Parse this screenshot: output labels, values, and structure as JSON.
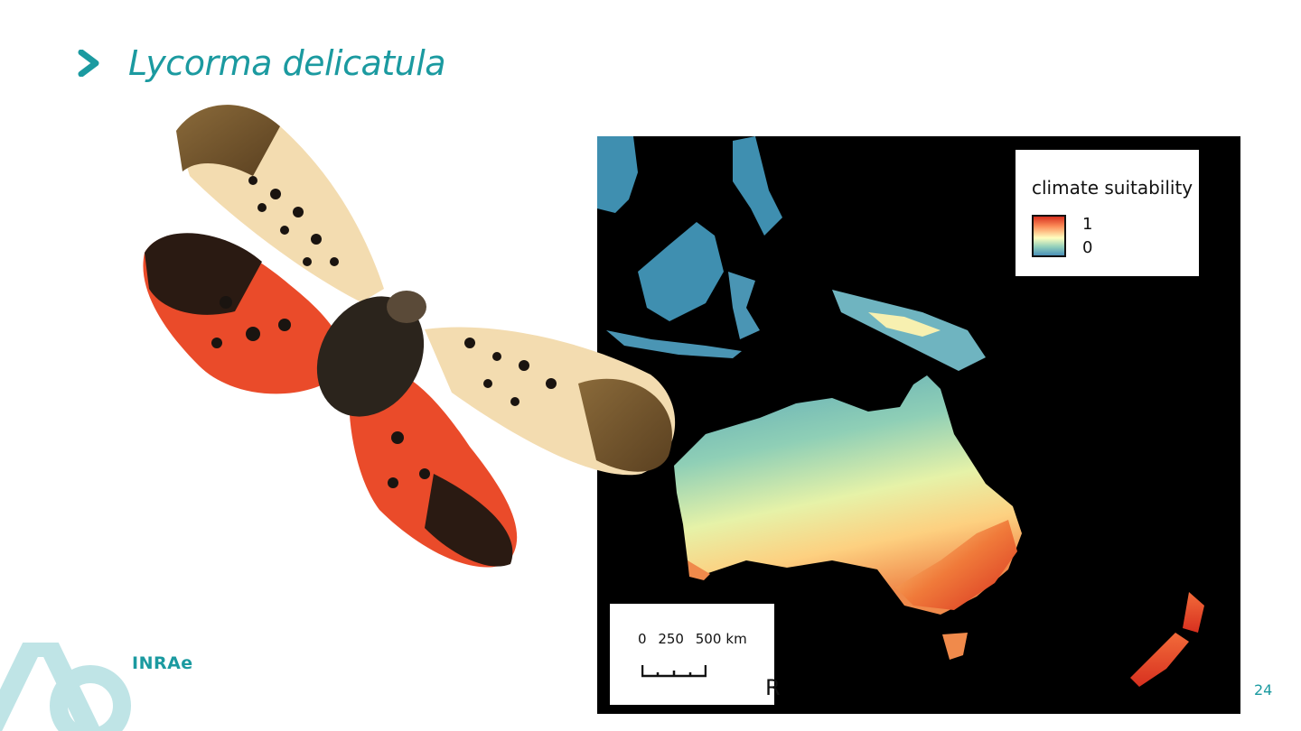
{
  "slide": {
    "title": "Lycorma delicatula",
    "page_number": "24",
    "partial_text": "R"
  },
  "map": {
    "legend_title": "climate suitability",
    "legend_high": "1",
    "legend_low": "0",
    "scale_ticks": [
      "0",
      "250",
      "500"
    ],
    "scale_unit": "km"
  },
  "brand": {
    "logo_text": "INRAe",
    "logo_mark": "Ae"
  },
  "colors": {
    "accent": "#1b9aa0",
    "suitability_high": "#d7301f",
    "suitability_mid": "#ffffbf",
    "suitability_low": "#4a90b8"
  }
}
